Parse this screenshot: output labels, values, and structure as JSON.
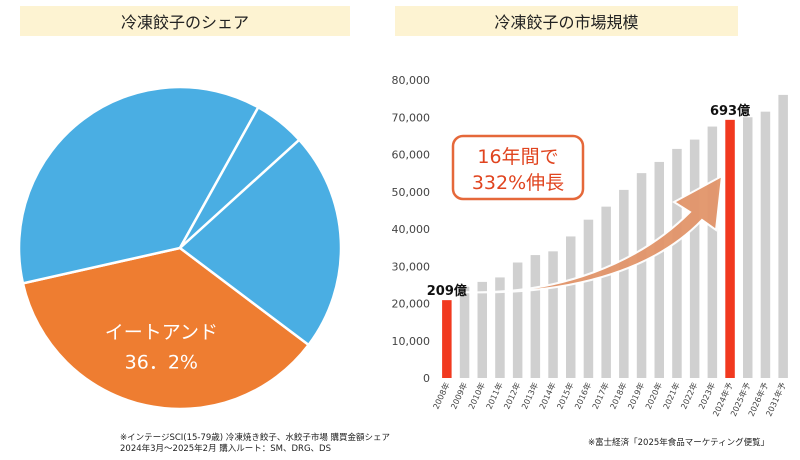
{
  "pie_title": "冷凍餃子のシェア",
  "bar_title": "冷凍餃子の市場規模",
  "colors": {
    "pie_blue": "#4aaee3",
    "pie_orange": "#ee7d31",
    "bar_gray": "#d0d0d0",
    "bar_red": "#f1391f",
    "arrow": "#e2956a",
    "callout_border": "#e5683a",
    "callout_text": "#e0441f"
  },
  "callout": {
    "line1": "16年間で",
    "line2": "332%伸長"
  },
  "footnote_left": {
    "line1": "※インテージSCI(15-79歳) 冷凍焼き餃子、水餃子市場 購買金額シェア",
    "line2": "2024年3月～2025年2月 購入ルート：SM、DRG、DS"
  },
  "footnote_right": "※富士経済「2025年食品マーケティング便覧」",
  "chart_data": [
    {
      "type": "pie",
      "title": "冷凍餃子のシェア",
      "slices": [
        {
          "label": "イートアンド",
          "value_label": "36．2%",
          "value": 36.2,
          "color": "#ee7d31"
        },
        {
          "label": "",
          "value": 36.6,
          "color": "#4aaee3"
        },
        {
          "label": "",
          "value": 5.2,
          "color": "#4aaee3"
        },
        {
          "label": "",
          "value": 22.0,
          "color": "#4aaee3"
        }
      ]
    },
    {
      "type": "bar",
      "title": "冷凍餃子の市場規模",
      "ylim": [
        0,
        80000
      ],
      "yticks": [
        "0",
        "10,000",
        "20,000",
        "30,000",
        "40,000",
        "50,000",
        "60,000",
        "70,000",
        "80,000"
      ],
      "categories": [
        "2008年",
        "2009年",
        "2010年",
        "2011年",
        "2012年",
        "2013年",
        "2014年",
        "2015年",
        "2016年",
        "2017年",
        "2018年",
        "2019年",
        "2020年",
        "2021年",
        "2022年",
        "2023年",
        "2024年予",
        "2025年予",
        "2026年予",
        "2031年予"
      ],
      "values": [
        20900,
        24500,
        25800,
        27000,
        31000,
        33000,
        34000,
        38000,
        42500,
        46000,
        50500,
        55000,
        58000,
        61500,
        64000,
        67500,
        69300,
        70000,
        71500,
        76000
      ],
      "highlight": [
        0,
        16
      ],
      "data_labels": [
        {
          "index": 0,
          "text": "209億"
        },
        {
          "index": 16,
          "text": "693億"
        }
      ]
    }
  ]
}
